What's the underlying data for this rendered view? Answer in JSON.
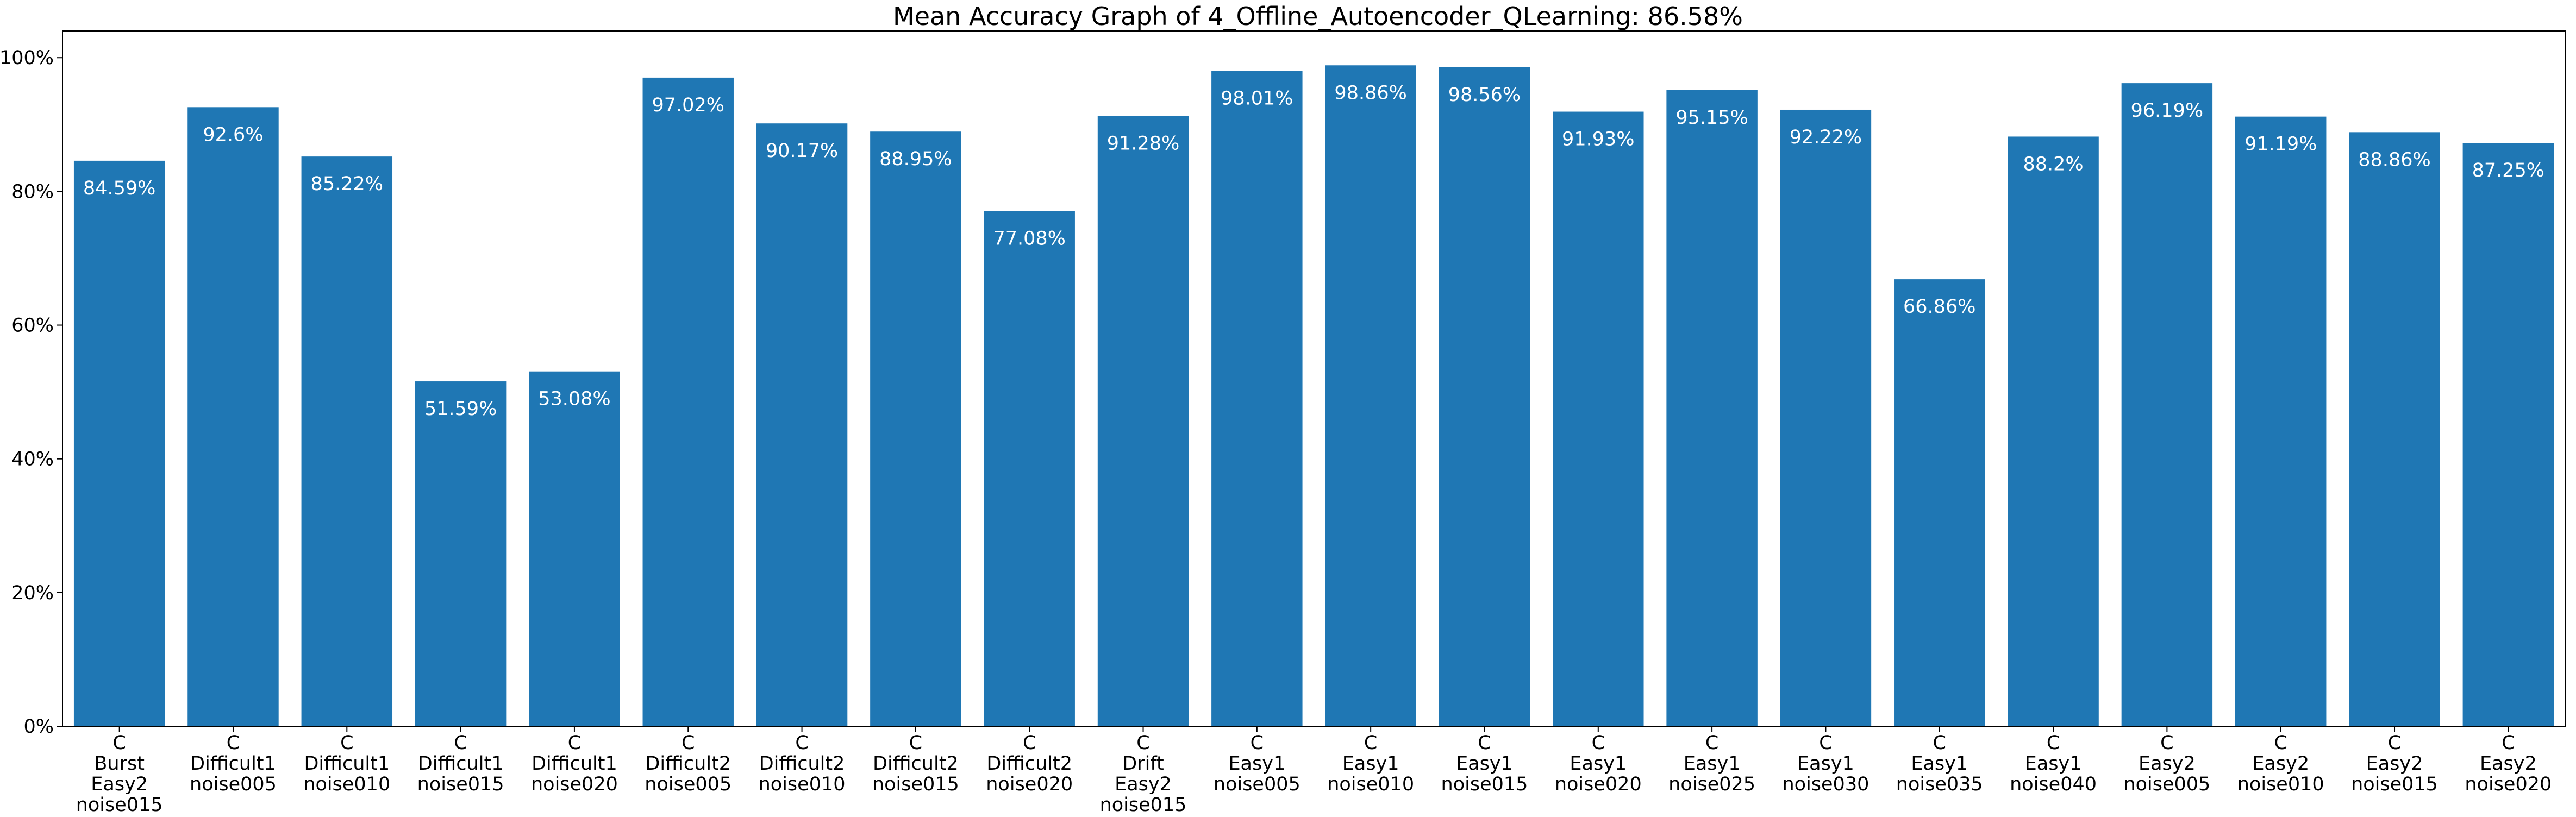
{
  "chart_data": {
    "type": "bar",
    "title": "Mean Accuracy Graph of 4_Offline_Autoencoder_QLearning: 86.58%",
    "xlabel": "",
    "ylabel": "",
    "ylim": [
      0,
      104
    ],
    "y_tick_values": [
      0,
      20,
      40,
      60,
      80,
      100
    ],
    "y_tick_labels": [
      "0%",
      "20%",
      "40%",
      "60%",
      "80%",
      "100%"
    ],
    "grid": false,
    "legend": "none",
    "bar_color": "#1f77b4",
    "label_color": "#ffffff",
    "categories": [
      [
        "C",
        "Burst",
        "Easy2",
        "noise015"
      ],
      [
        "C",
        "Difficult1",
        "noise005"
      ],
      [
        "C",
        "Difficult1",
        "noise010"
      ],
      [
        "C",
        "Difficult1",
        "noise015"
      ],
      [
        "C",
        "Difficult1",
        "noise020"
      ],
      [
        "C",
        "Difficult2",
        "noise005"
      ],
      [
        "C",
        "Difficult2",
        "noise010"
      ],
      [
        "C",
        "Difficult2",
        "noise015"
      ],
      [
        "C",
        "Difficult2",
        "noise020"
      ],
      [
        "C",
        "Drift",
        "Easy2",
        "noise015"
      ],
      [
        "C",
        "Easy1",
        "noise005"
      ],
      [
        "C",
        "Easy1",
        "noise010"
      ],
      [
        "C",
        "Easy1",
        "noise015"
      ],
      [
        "C",
        "Easy1",
        "noise020"
      ],
      [
        "C",
        "Easy1",
        "noise025"
      ],
      [
        "C",
        "Easy1",
        "noise030"
      ],
      [
        "C",
        "Easy1",
        "noise035"
      ],
      [
        "C",
        "Easy1",
        "noise040"
      ],
      [
        "C",
        "Easy2",
        "noise005"
      ],
      [
        "C",
        "Easy2",
        "noise010"
      ],
      [
        "C",
        "Easy2",
        "noise015"
      ],
      [
        "C",
        "Easy2",
        "noise020"
      ]
    ],
    "values": [
      84.59,
      92.6,
      85.22,
      51.59,
      53.08,
      97.02,
      90.17,
      88.95,
      77.08,
      91.28,
      98.01,
      98.86,
      98.56,
      91.93,
      95.15,
      92.22,
      66.86,
      88.2,
      96.19,
      91.19,
      88.86,
      87.25
    ],
    "value_labels": [
      "84.59%",
      "92.6%",
      "85.22%",
      "51.59%",
      "53.08%",
      "97.02%",
      "90.17%",
      "88.95%",
      "77.08%",
      "91.28%",
      "98.01%",
      "98.86%",
      "98.56%",
      "91.93%",
      "95.15%",
      "92.22%",
      "66.86%",
      "88.2%",
      "96.19%",
      "91.19%",
      "88.86%",
      "87.25%"
    ]
  }
}
